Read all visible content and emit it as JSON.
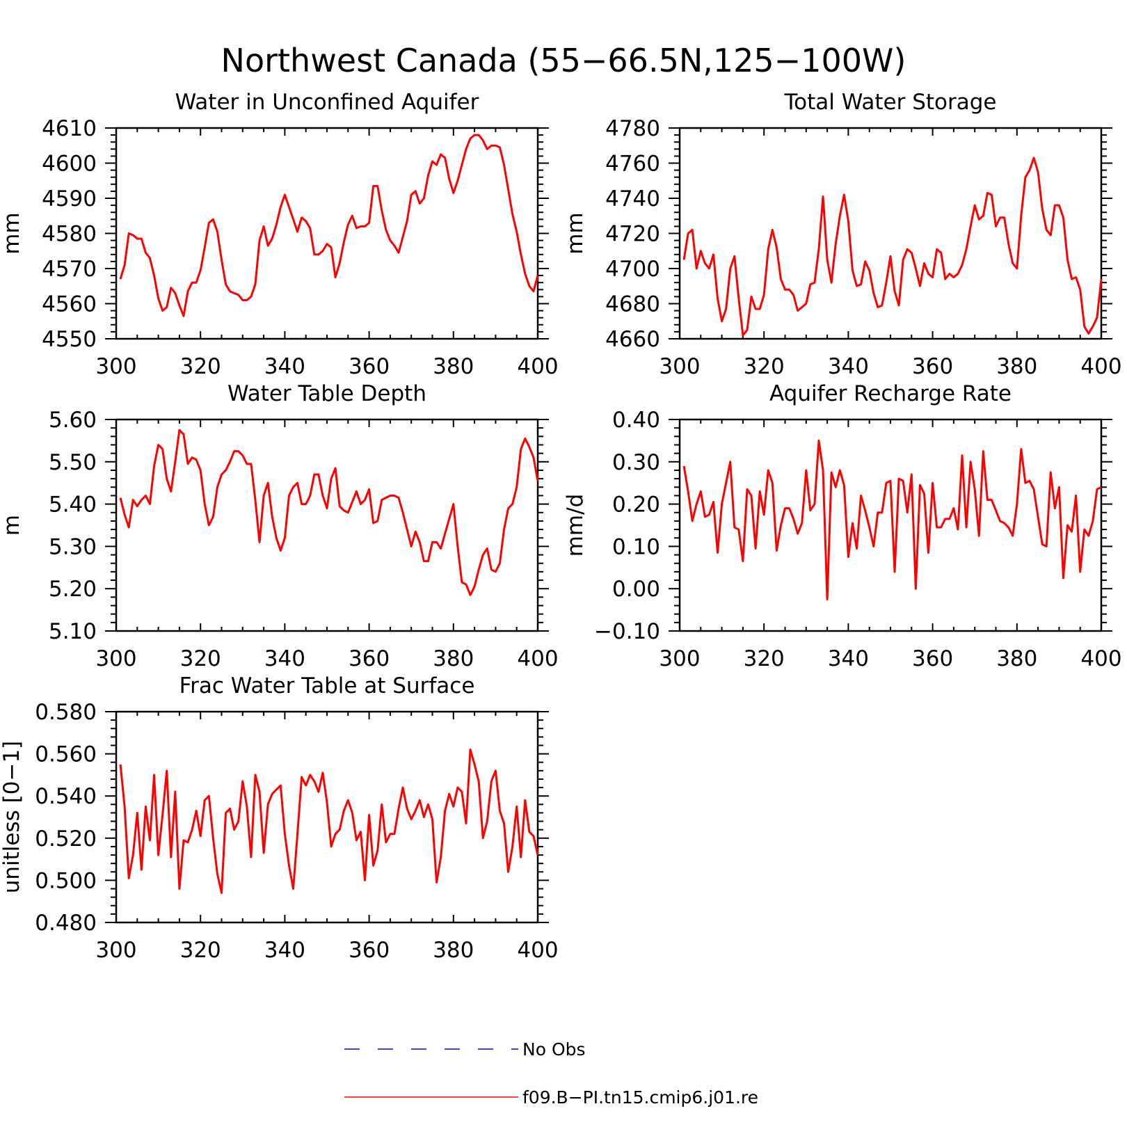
{
  "figure_title": "Northwest Canada (55−66.5N,125−100W)",
  "colors": {
    "model": "#ff0000",
    "obs": "#0000ff",
    "axes": "#000000"
  },
  "legend": [
    {
      "label": "No Obs",
      "style": "dashed",
      "color": "#0000ff"
    },
    {
      "label": "f09.B−PI.tn15.cmip6.j01.re",
      "style": "solid",
      "color": "#ff0000"
    }
  ],
  "chart_data": [
    {
      "type": "line",
      "title": "Water in Unconfined Aquifer",
      "xlabel": "",
      "ylabel": "mm",
      "xlim": [
        300,
        400
      ],
      "ylim": [
        4550,
        4610
      ],
      "xticks": [
        "300",
        "320",
        "340",
        "360",
        "380",
        "400"
      ],
      "yticks": [
        "4550",
        "4560",
        "4570",
        "4580",
        "4590",
        "4600",
        "4610"
      ],
      "x_start": 301,
      "series": [
        {
          "values": [
            4567,
            4571,
            4580,
            4579.5,
            4578.5,
            4578.5,
            4574.5,
            4573,
            4568,
            4561.5,
            4558,
            4559,
            4564.5,
            4563,
            4559.5,
            4556.5,
            4563.5,
            4566,
            4566,
            4569.5,
            4576,
            4583,
            4584,
            4580.5,
            4572.5,
            4565.5,
            4563.5,
            4563,
            4562.5,
            4561,
            4561,
            4562,
            4565.5,
            4578,
            4582,
            4576.5,
            4578.5,
            4582.5,
            4587.5,
            4591,
            4587.5,
            4584,
            4580.5,
            4584.5,
            4583.5,
            4581.5,
            4574,
            4574,
            4575,
            4577,
            4576,
            4567.5,
            4571.5,
            4577.5,
            4582.5,
            4585,
            4581.5,
            4582,
            4582,
            4583,
            4593.5,
            4593.5,
            4586.5,
            4581,
            4578,
            4576.5,
            4574.5,
            4579,
            4583.5,
            4591,
            4592,
            4588.5,
            4590,
            4596.5,
            4600.5,
            4599.5,
            4602.5,
            4601.5,
            4595.5,
            4591.5,
            4595,
            4599.5,
            4604,
            4607,
            4608,
            4608,
            4606.5,
            4604,
            4605,
            4605,
            4604.5,
            4599.5,
            4592.5,
            4585.5,
            4580.5,
            4574,
            4568.5,
            4565,
            4563.5,
            4568
          ]
        }
      ]
    },
    {
      "type": "line",
      "title": "Total Water Storage",
      "xlabel": "",
      "ylabel": "mm",
      "xlim": [
        300,
        400
      ],
      "ylim": [
        4660,
        4780
      ],
      "xticks": [
        "300",
        "320",
        "340",
        "360",
        "380",
        "400"
      ],
      "yticks": [
        "4660",
        "4680",
        "4700",
        "4720",
        "4740",
        "4760",
        "4780"
      ],
      "x_start": 301,
      "series": [
        {
          "values": [
            4705,
            4720,
            4722,
            4700,
            4710,
            4703,
            4700,
            4708,
            4683,
            4670,
            4677,
            4700,
            4707,
            4683,
            4662,
            4665,
            4684,
            4677,
            4677,
            4685,
            4711,
            4722,
            4712,
            4694,
            4688,
            4688,
            4685,
            4676,
            4678,
            4680,
            4691,
            4692,
            4711,
            4741,
            4705,
            4692,
            4714,
            4730,
            4742,
            4727,
            4699,
            4690,
            4691,
            4704,
            4699,
            4686,
            4678,
            4679,
            4692,
            4707,
            4687,
            4679,
            4705,
            4711,
            4709,
            4700,
            4690,
            4703,
            4697,
            4695,
            4711,
            4709,
            4694,
            4697,
            4695,
            4697,
            4702,
            4711,
            4724,
            4736,
            4728,
            4730,
            4743,
            4742,
            4724,
            4729,
            4729,
            4714,
            4703,
            4700,
            4730,
            4752,
            4756,
            4763,
            4755,
            4734,
            4722,
            4719,
            4736,
            4736,
            4729,
            4705,
            4694,
            4695,
            4688,
            4667,
            4663,
            4667,
            4672,
            4694
          ]
        }
      ]
    },
    {
      "type": "line",
      "title": "Water Table Depth",
      "xlabel": "",
      "ylabel": "m",
      "xlim": [
        300,
        400
      ],
      "ylim": [
        5.1,
        5.6
      ],
      "xticks": [
        "300",
        "320",
        "340",
        "360",
        "380",
        "400"
      ],
      "yticks": [
        "5.10",
        "5.20",
        "5.30",
        "5.40",
        "5.50",
        "5.60"
      ],
      "x_start": 301,
      "series": [
        {
          "values": [
            5.415,
            5.375,
            5.345,
            5.41,
            5.395,
            5.41,
            5.42,
            5.4,
            5.49,
            5.54,
            5.53,
            5.46,
            5.43,
            5.5,
            5.575,
            5.565,
            5.495,
            5.51,
            5.505,
            5.48,
            5.4,
            5.35,
            5.37,
            5.44,
            5.47,
            5.48,
            5.5,
            5.525,
            5.525,
            5.515,
            5.495,
            5.495,
            5.41,
            5.31,
            5.42,
            5.45,
            5.37,
            5.32,
            5.29,
            5.32,
            5.42,
            5.44,
            5.45,
            5.4,
            5.4,
            5.42,
            5.47,
            5.47,
            5.42,
            5.39,
            5.46,
            5.485,
            5.395,
            5.385,
            5.38,
            5.405,
            5.43,
            5.4,
            5.41,
            5.435,
            5.355,
            5.36,
            5.41,
            5.415,
            5.42,
            5.42,
            5.415,
            5.38,
            5.34,
            5.3,
            5.335,
            5.31,
            5.265,
            5.265,
            5.31,
            5.31,
            5.295,
            5.33,
            5.365,
            5.4,
            5.3,
            5.215,
            5.21,
            5.185,
            5.205,
            5.245,
            5.28,
            5.295,
            5.245,
            5.24,
            5.26,
            5.34,
            5.39,
            5.4,
            5.44,
            5.53,
            5.555,
            5.535,
            5.51,
            5.455
          ]
        }
      ]
    },
    {
      "type": "line",
      "title": "Aquifer Recharge Rate",
      "xlabel": "",
      "ylabel": "mm/d",
      "xlim": [
        300,
        400
      ],
      "ylim": [
        -0.1,
        0.4
      ],
      "xticks": [
        "300",
        "320",
        "340",
        "360",
        "380",
        "400"
      ],
      "yticks": [
        "−0.10",
        "0.00",
        "0.10",
        "0.20",
        "0.30",
        "0.40"
      ],
      "x_start": 301,
      "series": [
        {
          "values": [
            0.29,
            0.23,
            0.16,
            0.2,
            0.23,
            0.17,
            0.175,
            0.205,
            0.085,
            0.2,
            0.25,
            0.3,
            0.145,
            0.14,
            0.065,
            0.235,
            0.22,
            0.095,
            0.23,
            0.175,
            0.28,
            0.25,
            0.09,
            0.15,
            0.19,
            0.19,
            0.165,
            0.13,
            0.155,
            0.28,
            0.185,
            0.2,
            0.35,
            0.28,
            -0.025,
            0.275,
            0.24,
            0.28,
            0.245,
            0.075,
            0.155,
            0.095,
            0.22,
            0.185,
            0.145,
            0.1,
            0.18,
            0.18,
            0.25,
            0.255,
            0.04,
            0.26,
            0.255,
            0.18,
            0.27,
            0.0,
            0.245,
            0.225,
            0.085,
            0.25,
            0.145,
            0.145,
            0.165,
            0.165,
            0.19,
            0.14,
            0.315,
            0.145,
            0.3,
            0.235,
            0.125,
            0.325,
            0.21,
            0.21,
            0.185,
            0.16,
            0.155,
            0.145,
            0.125,
            0.2,
            0.33,
            0.25,
            0.255,
            0.235,
            0.17,
            0.105,
            0.1,
            0.275,
            0.19,
            0.24,
            0.025,
            0.15,
            0.135,
            0.22,
            0.04,
            0.14,
            0.125,
            0.16,
            0.235,
            0.24
          ]
        }
      ]
    },
    {
      "type": "line",
      "title": "Frac Water Table at Surface",
      "xlabel": "",
      "ylabel": "unitless [0−1]",
      "xlim": [
        300,
        400
      ],
      "ylim": [
        0.48,
        0.58
      ],
      "xticks": [
        "300",
        "320",
        "340",
        "360",
        "380",
        "400"
      ],
      "yticks": [
        "0.480",
        "0.500",
        "0.520",
        "0.540",
        "0.560",
        "0.580"
      ],
      "x_start": 301,
      "series": [
        {
          "values": [
            0.555,
            0.535,
            0.501,
            0.512,
            0.532,
            0.505,
            0.535,
            0.519,
            0.55,
            0.512,
            0.531,
            0.552,
            0.511,
            0.542,
            0.496,
            0.519,
            0.518,
            0.524,
            0.533,
            0.521,
            0.538,
            0.54,
            0.52,
            0.503,
            0.494,
            0.532,
            0.534,
            0.524,
            0.528,
            0.547,
            0.535,
            0.511,
            0.55,
            0.542,
            0.513,
            0.536,
            0.541,
            0.543,
            0.545,
            0.522,
            0.507,
            0.496,
            0.522,
            0.549,
            0.545,
            0.55,
            0.547,
            0.542,
            0.551,
            0.537,
            0.516,
            0.522,
            0.524,
            0.533,
            0.538,
            0.532,
            0.519,
            0.523,
            0.5,
            0.531,
            0.507,
            0.514,
            0.536,
            0.518,
            0.522,
            0.522,
            0.534,
            0.544,
            0.534,
            0.529,
            0.533,
            0.538,
            0.53,
            0.536,
            0.529,
            0.499,
            0.511,
            0.533,
            0.541,
            0.535,
            0.544,
            0.542,
            0.527,
            0.562,
            0.555,
            0.547,
            0.52,
            0.528,
            0.547,
            0.552,
            0.533,
            0.527,
            0.504,
            0.516,
            0.535,
            0.511,
            0.538,
            0.523,
            0.521,
            0.512
          ]
        }
      ]
    }
  ]
}
